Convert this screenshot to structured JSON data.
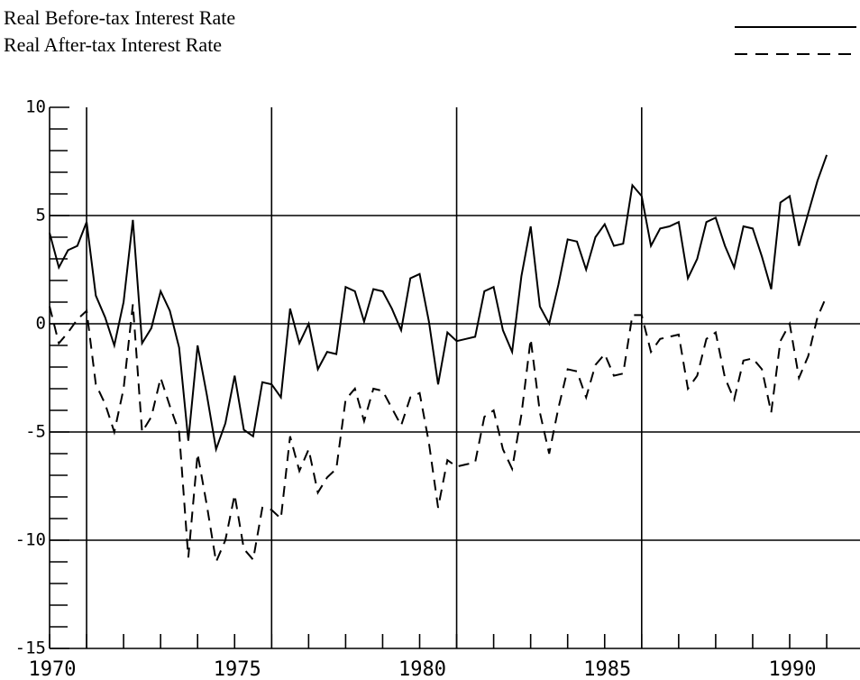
{
  "chart_data": {
    "type": "line",
    "x": [
      1970,
      1970.25,
      1970.5,
      1970.75,
      1971,
      1971.25,
      1971.5,
      1971.75,
      1972,
      1972.25,
      1972.5,
      1972.75,
      1973,
      1973.25,
      1973.5,
      1973.75,
      1974,
      1974.25,
      1974.5,
      1974.75,
      1975,
      1975.25,
      1975.5,
      1975.75,
      1976,
      1976.25,
      1976.5,
      1976.75,
      1977,
      1977.25,
      1977.5,
      1977.75,
      1978,
      1978.25,
      1978.5,
      1978.75,
      1979,
      1979.25,
      1979.5,
      1979.75,
      1980,
      1980.25,
      1980.5,
      1980.75,
      1981,
      1981.25,
      1981.5,
      1981.75,
      1982,
      1982.25,
      1982.5,
      1982.75,
      1983,
      1983.25,
      1983.5,
      1983.75,
      1984,
      1984.25,
      1984.5,
      1984.75,
      1985,
      1985.25,
      1985.5,
      1985.75,
      1986,
      1986.25,
      1986.5,
      1986.75,
      1987,
      1987.25,
      1987.5,
      1987.75,
      1988,
      1988.25,
      1988.5,
      1988.75,
      1989,
      1989.25,
      1989.5,
      1989.75,
      1990,
      1990.25,
      1990.5,
      1990.75,
      1991
    ],
    "series": [
      {
        "name": "Real Before-tax Interest Rate",
        "color": "#000000",
        "dash": "solid",
        "values": [
          4.2,
          2.6,
          3.4,
          3.6,
          4.7,
          1.3,
          0.3,
          -1.0,
          1.0,
          4.8,
          -0.9,
          -0.2,
          1.5,
          0.6,
          -1.1,
          -5.4,
          -1.0,
          -3.3,
          -5.8,
          -4.6,
          -2.4,
          -4.9,
          -5.2,
          -2.7,
          -2.8,
          -3.4,
          0.7,
          -0.9,
          0.0,
          -2.1,
          -1.3,
          -1.4,
          1.7,
          1.5,
          0.1,
          1.6,
          1.5,
          0.7,
          -0.3,
          2.1,
          2.3,
          0.1,
          -2.8,
          -0.4,
          -0.8,
          -0.7,
          -0.6,
          1.5,
          1.7,
          -0.3,
          -1.3,
          2.2,
          4.5,
          0.8,
          0.0,
          1.8,
          3.9,
          3.8,
          2.5,
          4.0,
          4.6,
          3.6,
          3.7,
          6.4,
          5.9,
          3.6,
          4.4,
          4.5,
          4.7,
          2.1,
          3.0,
          4.7,
          4.9,
          3.6,
          2.6,
          4.5,
          4.4,
          3.1,
          1.6,
          5.6,
          5.9,
          3.6,
          5.1,
          6.6,
          7.8
        ]
      },
      {
        "name": "Real After-tax Interest Rate",
        "color": "#000000",
        "dash": "dashed",
        "values": [
          0.8,
          -0.9,
          -0.4,
          0.2,
          0.6,
          -2.8,
          -3.7,
          -5.0,
          -3.0,
          0.9,
          -5.0,
          -4.3,
          -2.5,
          -3.8,
          -5.0,
          -10.8,
          -6.0,
          -8.4,
          -11.0,
          -10.0,
          -7.9,
          -10.4,
          -10.9,
          -8.5,
          -8.6,
          -9.0,
          -5.2,
          -6.8,
          -5.8,
          -7.8,
          -7.1,
          -6.7,
          -3.5,
          -3.0,
          -4.5,
          -3.0,
          -3.1,
          -3.9,
          -4.7,
          -3.4,
          -3.2,
          -5.5,
          -8.5,
          -6.3,
          -6.6,
          -6.5,
          -6.4,
          -4.3,
          -4.0,
          -5.8,
          -6.7,
          -4.2,
          -0.7,
          -4.1,
          -6.0,
          -3.9,
          -2.1,
          -2.2,
          -3.4,
          -1.9,
          -1.4,
          -2.4,
          -2.3,
          0.4,
          0.4,
          -1.3,
          -0.7,
          -0.6,
          -0.5,
          -3.0,
          -2.4,
          -0.7,
          -0.4,
          -2.5,
          -3.5,
          -1.7,
          -1.6,
          -2.1,
          -4.1,
          -0.8,
          0.0,
          -2.5,
          -1.5,
          0.3,
          1.3
        ]
      }
    ],
    "xlim": [
      1970,
      1991.9
    ],
    "xticks": [
      1970,
      1975,
      1980,
      1985,
      1990
    ],
    "xgrid": [
      1971,
      1976,
      1981,
      1986
    ],
    "xminorticks": [
      1970,
      1971,
      1972,
      1973,
      1974,
      1975,
      1976,
      1977,
      1978,
      1979,
      1980,
      1981,
      1982,
      1983,
      1984,
      1985,
      1986,
      1987,
      1988,
      1989,
      1990,
      1991
    ],
    "ylim": [
      -15,
      10
    ],
    "yticks": [
      -15,
      -10,
      -5,
      0,
      5,
      10
    ],
    "ygrid": [
      -10,
      -5,
      0,
      5
    ],
    "yminorticks": [
      -14,
      -13,
      -12,
      -11,
      -9,
      -8,
      -7,
      -6,
      -4,
      -3,
      -2,
      -1,
      1,
      2,
      3,
      4,
      6,
      7,
      8,
      9
    ],
    "legend": "top"
  }
}
